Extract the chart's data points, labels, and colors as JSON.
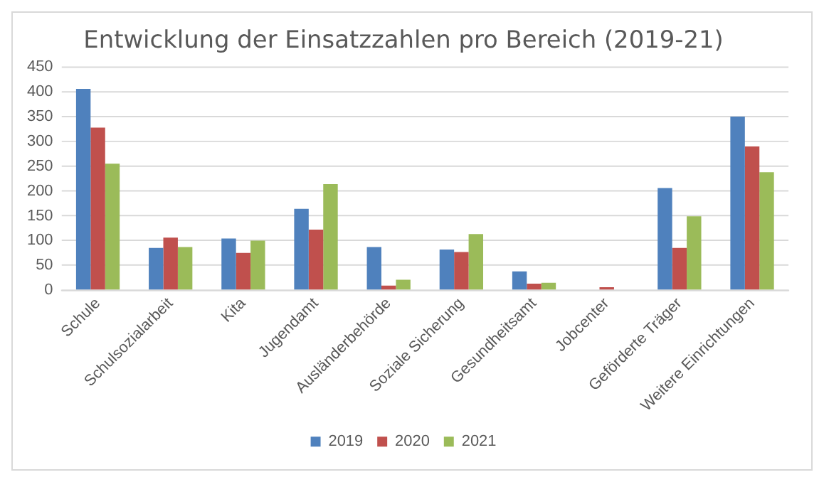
{
  "chart_data": {
    "type": "bar",
    "title": "Entwicklung der Einsatzzahlen pro Bereich (2019-21)",
    "categories": [
      "Schule",
      "Schulsozialarbeit",
      "Kita",
      "Jugendamt",
      "Ausländerbehörde",
      "Soziale Sicherung",
      "Gesundheitsamt",
      "Jobcenter",
      "Geförderte Träger",
      "Weitere Einrichtungen"
    ],
    "series": [
      {
        "name": "2019",
        "color": "#4f81bd",
        "values": [
          406,
          85,
          104,
          164,
          87,
          82,
          38,
          0,
          206,
          350
        ]
      },
      {
        "name": "2020",
        "color": "#c0504d",
        "values": [
          328,
          106,
          75,
          122,
          9,
          77,
          13,
          6,
          85,
          290
        ]
      },
      {
        "name": "2021",
        "color": "#9bbb59",
        "values": [
          255,
          87,
          100,
          214,
          21,
          113,
          15,
          0,
          149,
          238
        ]
      }
    ],
    "ylim": [
      0,
      450
    ],
    "yticks": [
      0,
      50,
      100,
      150,
      200,
      250,
      300,
      350,
      400,
      450
    ],
    "grid": "y",
    "legend": "bottom"
  }
}
